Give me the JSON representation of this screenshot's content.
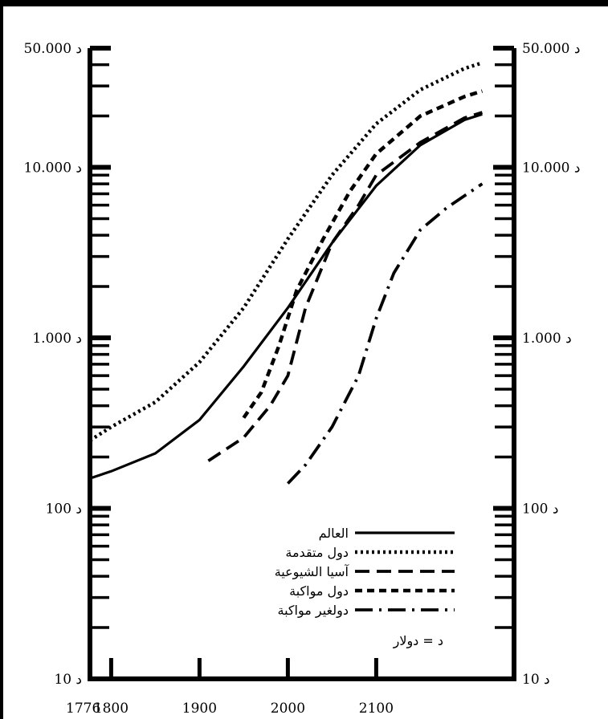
{
  "chart_data": {
    "type": "line",
    "title": "",
    "xlabel": "",
    "ylabel": "",
    "y_scale": "log",
    "ylim": [
      10,
      50000
    ],
    "xlim": [
      1776,
      2220
    ],
    "x_ticks": [
      1776,
      1800,
      1900,
      2000,
      2100
    ],
    "y_tick_labels": [
      {
        "value": 50000,
        "label": "50.000 د"
      },
      {
        "value": 10000,
        "label": "10.000 د"
      },
      {
        "value": 1000,
        "label": "1.000 د"
      },
      {
        "value": 100,
        "label": "100 د"
      },
      {
        "value": 10,
        "label": "10 د"
      }
    ],
    "grid": false,
    "legend_position": "bottom-right",
    "legend_note": "د = دولار",
    "series": [
      {
        "name": "العالم",
        "style": "solid",
        "points": [
          [
            1776,
            150
          ],
          [
            1800,
            165
          ],
          [
            1850,
            210
          ],
          [
            1900,
            330
          ],
          [
            1950,
            680
          ],
          [
            2000,
            1500
          ],
          [
            2050,
            3600
          ],
          [
            2100,
            7800
          ],
          [
            2150,
            13500
          ],
          [
            2200,
            19000
          ],
          [
            2220,
            20500
          ]
        ]
      },
      {
        "name": "دول متقدمة",
        "style": "dotted",
        "points": [
          [
            1776,
            250
          ],
          [
            1800,
            300
          ],
          [
            1850,
            420
          ],
          [
            1900,
            720
          ],
          [
            1950,
            1500
          ],
          [
            2000,
            3800
          ],
          [
            2050,
            9000
          ],
          [
            2100,
            18000
          ],
          [
            2150,
            28500
          ],
          [
            2200,
            38000
          ],
          [
            2220,
            41000
          ]
        ]
      },
      {
        "name": "آسيا الشيوعية",
        "style": "dashed",
        "points": [
          [
            1910,
            190
          ],
          [
            1950,
            260
          ],
          [
            1980,
            400
          ],
          [
            2000,
            600
          ],
          [
            2020,
            1500
          ],
          [
            2050,
            3600
          ],
          [
            2080,
            6000
          ],
          [
            2100,
            9000
          ],
          [
            2150,
            14000
          ],
          [
            2200,
            19500
          ],
          [
            2220,
            21000
          ]
        ]
      },
      {
        "name": "دول مواكبة",
        "style": "short-dashed",
        "points": [
          [
            1950,
            340
          ],
          [
            1970,
            480
          ],
          [
            1990,
            900
          ],
          [
            2010,
            1900
          ],
          [
            2040,
            3800
          ],
          [
            2070,
            7200
          ],
          [
            2100,
            12000
          ],
          [
            2150,
            20000
          ],
          [
            2200,
            26000
          ],
          [
            2220,
            28000
          ]
        ]
      },
      {
        "name": "دولغير مواكبة",
        "style": "dash-dot",
        "points": [
          [
            2000,
            140
          ],
          [
            2020,
            180
          ],
          [
            2050,
            300
          ],
          [
            2080,
            600
          ],
          [
            2100,
            1300
          ],
          [
            2120,
            2400
          ],
          [
            2150,
            4300
          ],
          [
            2180,
            5800
          ],
          [
            2220,
            8000
          ]
        ]
      }
    ]
  }
}
